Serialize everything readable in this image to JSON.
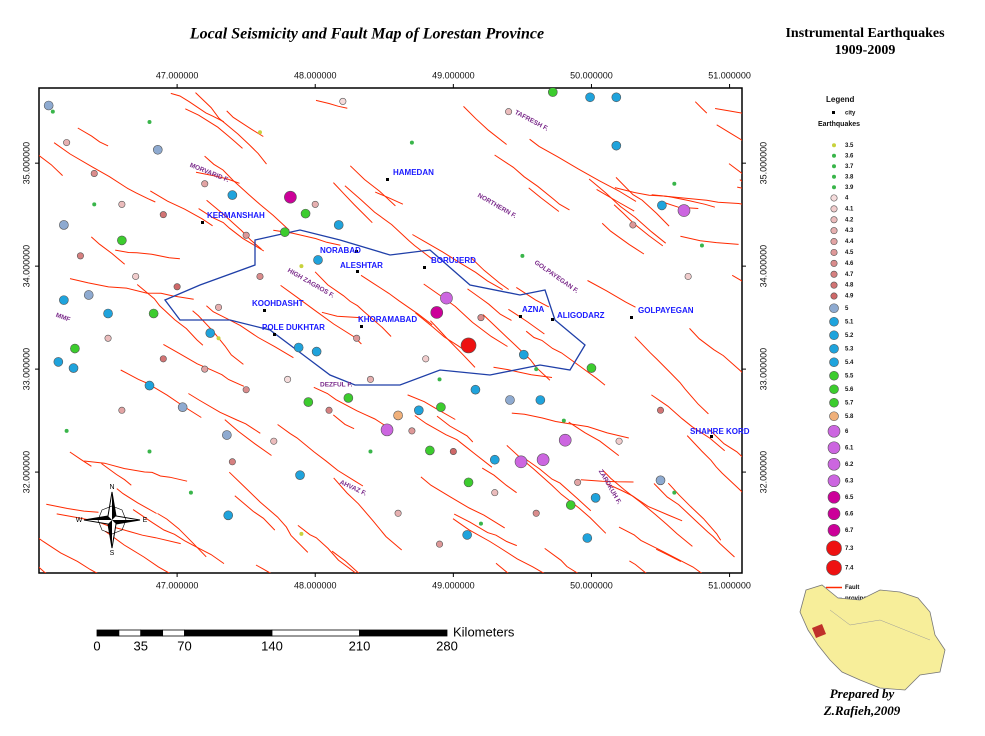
{
  "map": {
    "title": "Local Seismicity and Fault Map of  Lorestan Province",
    "side_title": [
      "Instrumental Earthquakes",
      "1909-2009"
    ],
    "credit": [
      "Prepared by",
      "Z.Rafieh,2009"
    ],
    "lon_range": [
      46,
      51.09
    ],
    "lat_range": [
      31.02,
      35.73
    ],
    "lon_ticks": [
      {
        "value": 47,
        "label": "47.000000"
      },
      {
        "value": 48,
        "label": "48.000000"
      },
      {
        "value": 49,
        "label": "49.000000"
      },
      {
        "value": 50,
        "label": "50.000000"
      },
      {
        "value": 51,
        "label": "51.000000"
      }
    ],
    "lat_ticks": [
      {
        "value": 32,
        "label": "32.000000"
      },
      {
        "value": 33,
        "label": "33.000000"
      },
      {
        "value": 34,
        "label": "34.000000"
      },
      {
        "value": 35,
        "label": "35.000000"
      }
    ],
    "cities": [
      "HAMEDAN",
      "KERMANSHAH",
      "NORABAD",
      "ALESHTAR",
      "BORUJERD",
      "KOOHDASHT",
      "POLE DUKHTAR",
      "KHORAMABAD",
      "AZNA",
      "ALIGODARZ",
      "GOLPAYEGAN",
      "SHAHRE KORD"
    ],
    "fault_names": [
      "MORVARID F.",
      "TAFRESH F.",
      "NORTHERN F.",
      "HIGH ZAGROS F.",
      "GOLPAYEGAN F.",
      "MMF",
      "AHVAZ F.",
      "DEZFUL F.",
      "ZARDKUH F."
    ],
    "compass": [
      "N",
      "S",
      "E",
      "W"
    ],
    "scale_bar": {
      "unit": "Kilometers",
      "ticks": [
        0,
        35,
        70,
        140,
        210,
        280
      ]
    },
    "legend": {
      "title": "Legend",
      "city": "city",
      "quakes": "Earthquakes",
      "fault": "Fault",
      "province": "province",
      "fault_color": "#ff2a00",
      "province_color": "#1f3fa8",
      "magnitudes": [
        {
          "value": 3.5,
          "color": "#c8d23c"
        },
        {
          "value": 3.6,
          "color": "#39b54a"
        },
        {
          "value": 3.7,
          "color": "#39b54a"
        },
        {
          "value": 3.8,
          "color": "#39b54a"
        },
        {
          "value": 3.9,
          "color": "#39b54a"
        },
        {
          "value": 4,
          "color": "#f5dcdc"
        },
        {
          "value": 4.1,
          "color": "#f0cccc"
        },
        {
          "value": 4.2,
          "color": "#ebbcbc"
        },
        {
          "value": 4.3,
          "color": "#e6b0b0"
        },
        {
          "value": 4.4,
          "color": "#e2a4a4"
        },
        {
          "value": 4.5,
          "color": "#de9898"
        },
        {
          "value": 4.6,
          "color": "#da8c8c"
        },
        {
          "value": 4.7,
          "color": "#d68080"
        },
        {
          "value": 4.8,
          "color": "#d27474"
        },
        {
          "value": 4.9,
          "color": "#ce6868"
        },
        {
          "value": 5,
          "color": "#8eaad0"
        },
        {
          "value": 5.1,
          "color": "#1fa3dc"
        },
        {
          "value": 5.2,
          "color": "#1fa3dc"
        },
        {
          "value": 5.3,
          "color": "#1fa3dc"
        },
        {
          "value": 5.4,
          "color": "#1fa3dc"
        },
        {
          "value": 5.5,
          "color": "#3ccc2e"
        },
        {
          "value": 5.6,
          "color": "#3ccc2e"
        },
        {
          "value": 5.7,
          "color": "#3ccc2e"
        },
        {
          "value": 5.8,
          "color": "#f0b07a"
        },
        {
          "value": 6,
          "color": "#cc66e0"
        },
        {
          "value": 6.1,
          "color": "#cc66e0"
        },
        {
          "value": 6.2,
          "color": "#cc66e0"
        },
        {
          "value": 6.3,
          "color": "#cc66e0"
        },
        {
          "value": 6.5,
          "color": "#cc0099"
        },
        {
          "value": 6.6,
          "color": "#cc0099"
        },
        {
          "value": 6.7,
          "color": "#cc0099"
        },
        {
          "value": 7.3,
          "color": "#ee1111"
        },
        {
          "value": 7.4,
          "color": "#ee1111"
        }
      ]
    },
    "earthquakes": [
      [
        47.82,
        34.67,
        6.5
      ],
      [
        50.67,
        34.54,
        6
      ],
      [
        48.95,
        33.69,
        6.1
      ],
      [
        49.11,
        33.23,
        7.3
      ],
      [
        48.88,
        33.55,
        6.6
      ],
      [
        48.52,
        32.41,
        6.2
      ],
      [
        49.81,
        32.31,
        6
      ],
      [
        49.65,
        32.12,
        6.1
      ],
      [
        49.49,
        32.1,
        6
      ],
      [
        46.07,
        35.56,
        5
      ],
      [
        49.99,
        35.64,
        5.1
      ],
      [
        50.18,
        35.64,
        5.2
      ],
      [
        46.86,
        35.13,
        5
      ],
      [
        50.18,
        35.17,
        5.2
      ],
      [
        50.51,
        34.59,
        5.1
      ],
      [
        46.18,
        34.4,
        5
      ],
      [
        47.4,
        34.69,
        5.3
      ],
      [
        48.17,
        34.4,
        5.2
      ],
      [
        48.02,
        34.06,
        5.2
      ],
      [
        46.18,
        33.67,
        5.3
      ],
      [
        46.5,
        33.54,
        5.3
      ],
      [
        46.36,
        33.72,
        5
      ],
      [
        46.14,
        33.07,
        5.2
      ],
      [
        46.25,
        33.01,
        5.3
      ],
      [
        47.24,
        33.35,
        5.2
      ],
      [
        47.88,
        33.21,
        5.3
      ],
      [
        48.01,
        33.17,
        5.4
      ],
      [
        47.04,
        32.63,
        5
      ],
      [
        46.8,
        32.84,
        5.1
      ],
      [
        47.36,
        32.36,
        5
      ],
      [
        47.37,
        31.58,
        5.2
      ],
      [
        47.89,
        31.97,
        5.4
      ],
      [
        48.75,
        32.6,
        5.2
      ],
      [
        49.16,
        32.8,
        5.1
      ],
      [
        49.41,
        32.7,
        5
      ],
      [
        49.3,
        32.12,
        5.2
      ],
      [
        49.1,
        31.39,
        5.3
      ],
      [
        50.03,
        31.75,
        5.1
      ],
      [
        50.5,
        31.92,
        5
      ],
      [
        49.97,
        31.36,
        5.2
      ],
      [
        49.51,
        33.14,
        5.2
      ],
      [
        49.63,
        32.7,
        5.3
      ],
      [
        49.72,
        35.69,
        5.6
      ],
      [
        47.93,
        34.51,
        5.5
      ],
      [
        47.78,
        34.33,
        5.6
      ],
      [
        46.6,
        34.25,
        5.5
      ],
      [
        46.26,
        33.2,
        5.6
      ],
      [
        46.83,
        33.54,
        5.5
      ],
      [
        50,
        33.01,
        5.5
      ],
      [
        48.91,
        32.63,
        5.6
      ],
      [
        47.95,
        32.68,
        5.7
      ],
      [
        48.24,
        32.72,
        5.5
      ],
      [
        49.85,
        31.68,
        5.5
      ],
      [
        48.83,
        32.21,
        5.6
      ],
      [
        49.11,
        31.9,
        5.5
      ],
      [
        48.6,
        32.55,
        5.8
      ],
      [
        46.2,
        35.2,
        4.3
      ],
      [
        46.4,
        34.9,
        4.6
      ],
      [
        46.6,
        34.6,
        4.2
      ],
      [
        46.9,
        34.5,
        4.8
      ],
      [
        47.2,
        34.8,
        4.4
      ],
      [
        47.5,
        34.3,
        4.5
      ],
      [
        46.3,
        34.1,
        4.7
      ],
      [
        46.7,
        33.9,
        4.1
      ],
      [
        47,
        33.8,
        4.9
      ],
      [
        47.3,
        33.6,
        4.3
      ],
      [
        47.6,
        33.9,
        4.6
      ],
      [
        46.5,
        33.3,
        4.2
      ],
      [
        46.9,
        33.1,
        4.8
      ],
      [
        47.2,
        33,
        4.4
      ],
      [
        47.5,
        32.8,
        4.6
      ],
      [
        47.8,
        32.9,
        4
      ],
      [
        48.1,
        32.6,
        4.7
      ],
      [
        48.4,
        32.9,
        4.3
      ],
      [
        48.7,
        32.4,
        4.5
      ],
      [
        49,
        32.2,
        4.9
      ],
      [
        49.3,
        31.8,
        4.2
      ],
      [
        49.6,
        31.6,
        4.6
      ],
      [
        49.9,
        31.9,
        4.4
      ],
      [
        50.2,
        32.3,
        4.1
      ],
      [
        50.5,
        32.6,
        4.8
      ],
      [
        48.6,
        31.6,
        4.3
      ],
      [
        48.9,
        31.3,
        4.5
      ],
      [
        47.7,
        32.3,
        4.2
      ],
      [
        47.4,
        32.1,
        4.7
      ],
      [
        46.6,
        32.6,
        4.4
      ],
      [
        48.3,
        33.3,
        4.5
      ],
      [
        48.8,
        33.1,
        4.1
      ],
      [
        49.2,
        33.5,
        4.6
      ],
      [
        48,
        34.6,
        4.3
      ],
      [
        48.2,
        35.6,
        4
      ],
      [
        49.4,
        35.5,
        4.2
      ],
      [
        50.3,
        34.4,
        4.5
      ],
      [
        50.7,
        33.9,
        4.1
      ],
      [
        46.1,
        35.5,
        3.6
      ],
      [
        46.8,
        35.4,
        3.8
      ],
      [
        47.6,
        35.3,
        3.5
      ],
      [
        48.7,
        35.2,
        3.7
      ],
      [
        50.6,
        34.8,
        3.9
      ],
      [
        50.8,
        34.2,
        3.6
      ],
      [
        46.4,
        34.6,
        3.7
      ],
      [
        47.9,
        34,
        3.5
      ],
      [
        49.5,
        34.1,
        3.8
      ],
      [
        46.2,
        32.4,
        3.6
      ],
      [
        46.8,
        32.2,
        3.9
      ],
      [
        47.1,
        31.8,
        3.7
      ],
      [
        47.9,
        31.4,
        3.5
      ],
      [
        48.4,
        32.2,
        3.8
      ],
      [
        49.2,
        31.5,
        3.6
      ],
      [
        49.8,
        32.5,
        3.7
      ],
      [
        50.6,
        31.8,
        3.9
      ],
      [
        48.9,
        32.9,
        3.6
      ],
      [
        49.6,
        33,
        3.8
      ],
      [
        47.3,
        33.3,
        3.5
      ]
    ]
  }
}
